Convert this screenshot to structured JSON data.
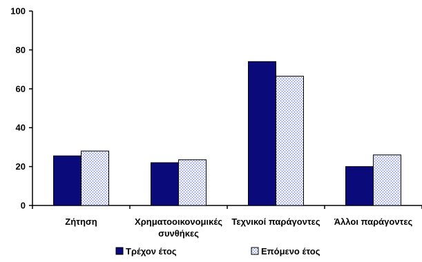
{
  "chart_data": {
    "type": "bar",
    "categories": [
      [
        "Ζήτηση"
      ],
      [
        "Χρηματοοικονομικές",
        "συνθήκες"
      ],
      [
        "Τεχνικοί παράγοντες"
      ],
      [
        "Άλλοι παράγοντες"
      ]
    ],
    "series": [
      {
        "name": "Τρέχον έτος",
        "values": [
          25.5,
          22,
          74,
          20
        ],
        "color": "#0a0a7a",
        "pattern": "solid"
      },
      {
        "name": "Επόμενο έτος",
        "values": [
          28,
          23.5,
          66.5,
          26
        ],
        "color": "#c8cff0",
        "pattern": "dotted"
      }
    ],
    "ylim": [
      0,
      100
    ],
    "yticks": [
      "0",
      "20",
      "40",
      "60",
      "80",
      "100"
    ],
    "grid": false,
    "legend_position": "bottom",
    "title": "",
    "xlabel": "",
    "ylabel": ""
  }
}
